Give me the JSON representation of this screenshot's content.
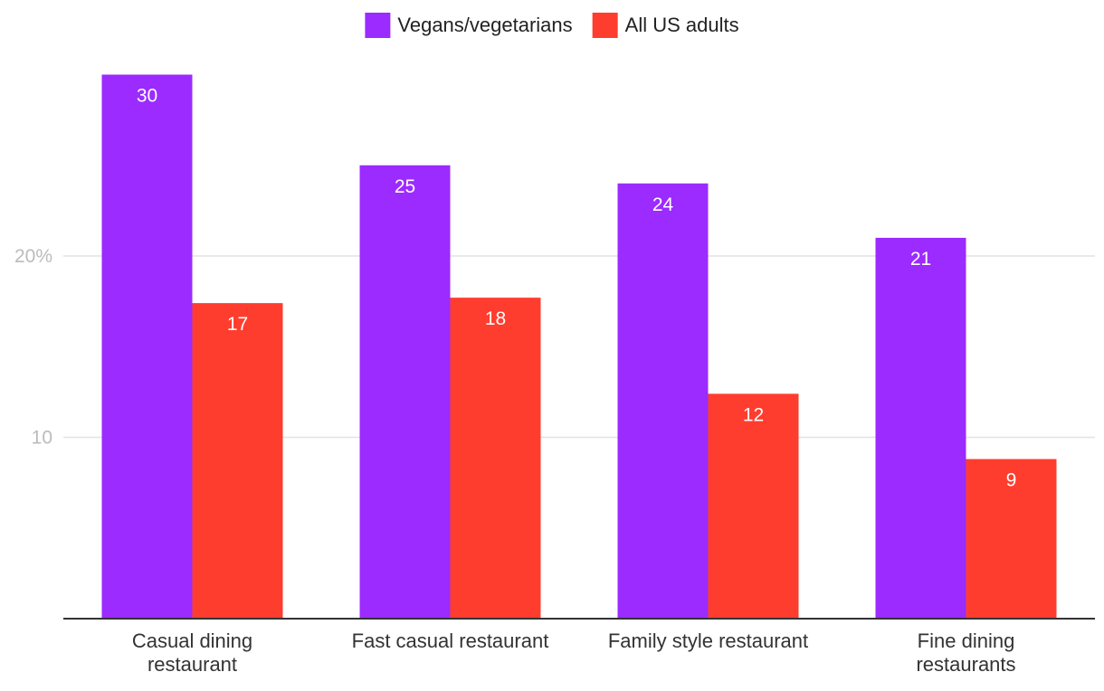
{
  "chart_data": {
    "type": "bar",
    "categories": [
      [
        "Casual dining",
        "restaurant"
      ],
      [
        "Fast casual restaurant"
      ],
      [
        "Family style restaurant"
      ],
      [
        "Fine dining",
        "restaurants"
      ]
    ],
    "series": [
      {
        "name": "Vegans/vegetarians",
        "color": "#9b2bff",
        "values": [
          30,
          25,
          24,
          21
        ],
        "labels": [
          "30",
          "25",
          "24",
          "21"
        ]
      },
      {
        "name": "All US adults",
        "color": "#ff3d2e",
        "values": [
          17.4,
          17.7,
          12.4,
          8.8
        ],
        "labels": [
          "17",
          "18",
          "12",
          "9"
        ]
      }
    ],
    "yticks": [
      {
        "value": 10,
        "label": "10"
      },
      {
        "value": 20,
        "label": "20%"
      }
    ],
    "ylim": [
      0,
      30
    ],
    "grid": true,
    "legend_position": "top-center"
  }
}
